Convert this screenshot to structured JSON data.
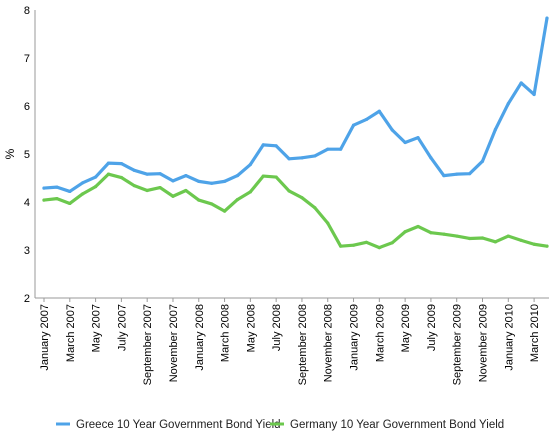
{
  "chart_data": {
    "type": "line",
    "ylabel": "%",
    "ylim": [
      2,
      8
    ],
    "yticks": [
      2,
      3,
      4,
      5,
      6,
      7,
      8
    ],
    "grid": false,
    "legend": "bottom",
    "x_tick_labels": [
      "January 2007",
      "March 2007",
      "May 2007",
      "July 2007",
      "September 2007",
      "November 2007",
      "January 2008",
      "March 2008",
      "May 2008",
      "July 2008",
      "September 2008",
      "November 2008",
      "January 2009",
      "March 2009",
      "May 2009",
      "July 2009",
      "September 2009",
      "November 2009",
      "January 2010",
      "March 2010"
    ],
    "x": [
      "2007-01",
      "2007-02",
      "2007-03",
      "2007-04",
      "2007-05",
      "2007-06",
      "2007-07",
      "2007-08",
      "2007-09",
      "2007-10",
      "2007-11",
      "2007-12",
      "2008-01",
      "2008-02",
      "2008-03",
      "2008-04",
      "2008-05",
      "2008-06",
      "2008-07",
      "2008-08",
      "2008-09",
      "2008-10",
      "2008-11",
      "2008-12",
      "2009-01",
      "2009-02",
      "2009-03",
      "2009-04",
      "2009-05",
      "2009-06",
      "2009-07",
      "2009-08",
      "2009-09",
      "2009-10",
      "2009-11",
      "2009-12",
      "2010-01",
      "2010-02",
      "2010-03",
      "2010-04"
    ],
    "series": [
      {
        "name": "Greece 10 Year Government Bond Yield",
        "color": "#4ea3e8",
        "values": [
          4.29,
          4.31,
          4.22,
          4.4,
          4.52,
          4.81,
          4.8,
          4.66,
          4.58,
          4.59,
          4.44,
          4.55,
          4.43,
          4.39,
          4.43,
          4.55,
          4.78,
          5.19,
          5.17,
          4.9,
          4.92,
          4.96,
          5.1,
          5.1,
          5.6,
          5.72,
          5.89,
          5.5,
          5.24,
          5.34,
          4.92,
          4.55,
          4.58,
          4.59,
          4.85,
          5.51,
          6.05,
          6.48,
          6.24,
          7.83
        ]
      },
      {
        "name": "Germany 10 Year Government Bond Yield",
        "color": "#6cc84e",
        "values": [
          4.04,
          4.07,
          3.97,
          4.17,
          4.32,
          4.58,
          4.51,
          4.34,
          4.24,
          4.3,
          4.12,
          4.24,
          4.04,
          3.96,
          3.81,
          4.05,
          4.21,
          4.54,
          4.52,
          4.23,
          4.09,
          3.88,
          3.56,
          3.08,
          3.1,
          3.16,
          3.05,
          3.15,
          3.38,
          3.49,
          3.36,
          3.33,
          3.29,
          3.24,
          3.25,
          3.17,
          3.29,
          3.2,
          3.12,
          3.08
        ]
      }
    ]
  }
}
